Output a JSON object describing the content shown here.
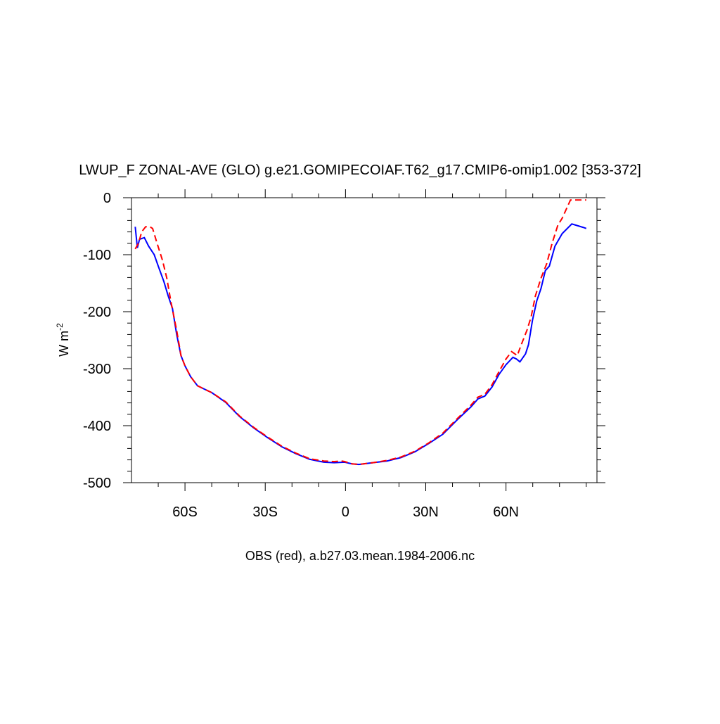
{
  "chart_data": {
    "type": "line",
    "title": "LWUP_F ZONAL-AVE (GLO) g.e21.GOMIPECOIAF.T62_g17.CMIP6-omip1.002 [353-372]",
    "xlabel": "OBS (red), a.b27.03.mean.1984-2006.nc",
    "ylabel": "W m",
    "ylabel_exponent": "-2",
    "xlim": [
      -80,
      94
    ],
    "ylim": [
      -500,
      0
    ],
    "xticks": [
      {
        "value": -60,
        "label": "60S"
      },
      {
        "value": -30,
        "label": "30S"
      },
      0,
      {
        "value": 30,
        "label": "30N"
      },
      {
        "value": 60,
        "label": "60N"
      }
    ],
    "xminorticks": [
      -70,
      -50,
      -40,
      -20,
      -10,
      10,
      20,
      40,
      50,
      70,
      80,
      90
    ],
    "yticks": [
      0,
      -100,
      -200,
      -300,
      -400,
      -500
    ],
    "yminorticks": [
      -20,
      -40,
      -60,
      -80,
      -120,
      -140,
      -160,
      -180,
      -220,
      -240,
      -260,
      -280,
      -320,
      -340,
      -360,
      -380,
      -420,
      -440,
      -460,
      -480
    ],
    "series": [
      {
        "color": "#0000ff",
        "dash": "solid",
        "x": [
          -78.6,
          -77.8,
          -77.0,
          -75.2,
          -73.6,
          -71.5,
          -70.0,
          -67.9,
          -66.3,
          -64.7,
          -63.1,
          -61.5,
          -60.0,
          -57.9,
          -55.3,
          -52.7,
          -50.0,
          -44.8,
          -39.6,
          -34.3,
          -29.1,
          -23.8,
          -18.6,
          -13.4,
          -8.1,
          -4.2,
          -0.3,
          2.4,
          5.0,
          10.2,
          15.5,
          20.7,
          25.9,
          31.2,
          36.4,
          41.7,
          46.9,
          49.5,
          52.1,
          54.8,
          57.4,
          60.0,
          62.6,
          63.9,
          65.2,
          67.3,
          68.4,
          69.9,
          71.5,
          73.1,
          74.7,
          76.2,
          78.3,
          81.0,
          84.6,
          88.8,
          90
        ],
        "values": [
          -51,
          -88,
          -73,
          -70,
          -85,
          -100,
          -120,
          -147,
          -172,
          -194,
          -240,
          -277,
          -295,
          -314,
          -330,
          -336,
          -342,
          -359,
          -384,
          -404,
          -421,
          -437,
          -449,
          -459,
          -464,
          -465,
          -464,
          -467,
          -468,
          -465,
          -462,
          -456,
          -446,
          -431,
          -415,
          -390,
          -367,
          -353,
          -348,
          -332,
          -310,
          -293,
          -280,
          -283,
          -288,
          -274,
          -258,
          -215,
          -181,
          -159,
          -128,
          -120,
          -85,
          -63,
          -46,
          -52,
          -54
        ]
      },
      {
        "color": "#ff0000",
        "dash": "dashed",
        "x": [
          -78.6,
          -77.3,
          -76.2,
          -74.7,
          -73.1,
          -72.1,
          -70.5,
          -68.4,
          -66.8,
          -65.2,
          -63.1,
          -61.5,
          -60.0,
          -57.9,
          -55.3,
          -52.7,
          -50.0,
          -44.8,
          -39.6,
          -34.3,
          -29.1,
          -23.8,
          -18.6,
          -13.4,
          -8.1,
          -4.2,
          -1.6,
          -0.3,
          2.4,
          5.0,
          10.2,
          15.5,
          20.7,
          25.9,
          31.2,
          36.4,
          41.7,
          46.9,
          49.5,
          52.1,
          54.8,
          57.4,
          60.0,
          62.1,
          64.2,
          65.7,
          67.8,
          69.4,
          71.0,
          73.1,
          75.2,
          77.3,
          79.4,
          81.0,
          84.1,
          86.2,
          90
        ],
        "values": [
          -90,
          -79,
          -60,
          -51,
          -51,
          -54,
          -79,
          -110,
          -141,
          -184,
          -233,
          -277,
          -295,
          -314,
          -330,
          -336,
          -342,
          -358,
          -383,
          -403,
          -420,
          -436,
          -448,
          -458,
          -462,
          -463,
          -462,
          -463,
          -467,
          -468,
          -465,
          -461,
          -455,
          -445,
          -430,
          -413,
          -388,
          -364,
          -350,
          -345,
          -328,
          -305,
          -283,
          -270,
          -277,
          -258,
          -233,
          -209,
          -172,
          -141,
          -116,
          -79,
          -48,
          -36,
          -4,
          -4,
          -4
        ]
      }
    ]
  }
}
